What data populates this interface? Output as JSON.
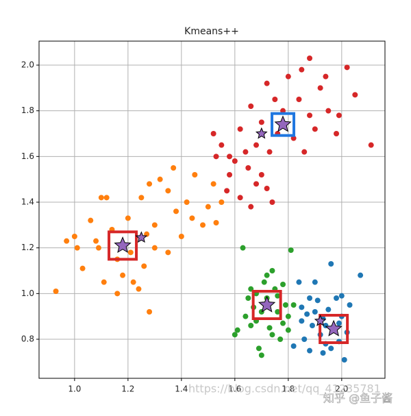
{
  "chart_data": {
    "type": "scatter",
    "title": "Kmeans++",
    "xlim": [
      0.867,
      2.162
    ],
    "ylim": [
      0.629,
      2.105
    ],
    "xticks": [
      {
        "value": 1,
        "label": "1.0"
      },
      1.2,
      1.4,
      1.6,
      1.8,
      {
        "value": 2,
        "label": "2.0"
      }
    ],
    "yticks": [
      0.8,
      {
        "value": 1,
        "label": "1.0"
      },
      1.2,
      1.4,
      1.6,
      1.8,
      {
        "value": 2,
        "label": "2.0"
      }
    ],
    "grid": true,
    "series": [
      {
        "color": "#d62728",
        "marker": "circle",
        "x": [
          1.62,
          1.65,
          1.58,
          1.55,
          1.52,
          1.6,
          1.68,
          1.7,
          1.72,
          1.66,
          1.74,
          1.64,
          1.58,
          1.66,
          1.72,
          1.75,
          1.8,
          1.85,
          1.88,
          1.92,
          1.95,
          1.98,
          2.02,
          2.05,
          2.11,
          1.88,
          1.82,
          1.9,
          1.84,
          1.78,
          1.7,
          1.68,
          1.62,
          1.73,
          1.94,
          1.86,
          1.76,
          1.99,
          1.53,
          1.57
        ],
        "values": [
          1.42,
          1.55,
          1.6,
          1.65,
          1.7,
          1.58,
          1.48,
          1.52,
          1.46,
          1.38,
          1.4,
          1.62,
          1.52,
          1.82,
          1.92,
          1.85,
          1.95,
          1.98,
          2.03,
          1.9,
          1.8,
          1.7,
          1.99,
          1.87,
          1.65,
          1.78,
          1.68,
          1.72,
          1.85,
          1.8,
          1.75,
          1.65,
          1.72,
          1.62,
          1.95,
          1.62,
          1.7,
          1.78,
          1.6,
          1.45
        ]
      },
      {
        "color": "#ff7f0e",
        "marker": "circle",
        "x": [
          0.93,
          0.97,
          1.0,
          1.01,
          1.03,
          1.06,
          1.08,
          1.1,
          1.12,
          1.11,
          1.14,
          1.16,
          1.18,
          1.2,
          1.22,
          1.24,
          1.26,
          1.28,
          1.25,
          1.3,
          1.32,
          1.35,
          1.38,
          1.4,
          1.42,
          1.45,
          1.48,
          1.5,
          1.52,
          1.53,
          1.55,
          1.35,
          1.3,
          1.28,
          1.09,
          1.16,
          1.37,
          1.44,
          1.21,
          1.27
        ],
        "values": [
          1.01,
          1.23,
          1.25,
          1.2,
          1.11,
          1.32,
          1.23,
          1.42,
          1.42,
          1.05,
          1.28,
          1.0,
          1.08,
          1.33,
          1.05,
          1.02,
          1.12,
          0.92,
          1.42,
          1.2,
          1.5,
          1.45,
          1.36,
          1.25,
          1.4,
          1.52,
          1.3,
          1.38,
          1.48,
          1.31,
          1.4,
          1.18,
          1.3,
          1.48,
          1.2,
          1.15,
          1.55,
          1.33,
          1.18,
          1.26
        ]
      },
      {
        "color": "#2ca02c",
        "marker": "circle",
        "x": [
          1.6,
          1.61,
          1.63,
          1.64,
          1.65,
          1.66,
          1.67,
          1.68,
          1.69,
          1.7,
          1.71,
          1.72,
          1.73,
          1.74,
          1.75,
          1.76,
          1.77,
          1.78,
          1.79,
          1.8,
          1.81,
          1.82,
          1.68,
          1.74,
          1.78,
          1.7,
          1.66,
          1.72,
          1.8,
          1.76
        ],
        "values": [
          0.82,
          0.84,
          1.2,
          0.9,
          0.98,
          1.02,
          0.94,
          0.88,
          0.76,
          0.73,
          1.05,
          0.98,
          0.85,
          1.1,
          1.02,
          0.92,
          0.8,
          0.87,
          0.95,
          0.9,
          1.19,
          0.95,
          1.0,
          0.82,
          1.04,
          0.92,
          0.86,
          1.08,
          0.84,
          0.99
        ]
      },
      {
        "color": "#1f77b4",
        "marker": "circle",
        "x": [
          1.82,
          1.84,
          1.85,
          1.86,
          1.87,
          1.88,
          1.89,
          1.9,
          1.91,
          1.92,
          1.93,
          1.94,
          1.95,
          1.96,
          1.97,
          1.98,
          1.99,
          2.0,
          2.01,
          2.02,
          2.03,
          2.07,
          1.88,
          1.94,
          1.99,
          1.85,
          1.96,
          1.9,
          2.0,
          1.93
        ],
        "values": [
          0.77,
          1.05,
          0.88,
          0.8,
          0.91,
          0.75,
          0.86,
          1.05,
          0.97,
          0.82,
          0.89,
          0.78,
          0.93,
          1.13,
          0.84,
          0.98,
          0.79,
          0.9,
          0.71,
          0.83,
          0.95,
          1.08,
          0.98,
          0.86,
          0.87,
          0.94,
          0.76,
          0.92,
          0.99,
          0.74
        ]
      },
      {
        "color": "#d62728",
        "marker": "square",
        "x": [
          1.18,
          1.72,
          1.97
        ],
        "values": [
          1.21,
          0.95,
          0.845
        ]
      },
      {
        "color": "#1f77e0",
        "marker": "square",
        "x": [
          1.78
        ],
        "values": [
          1.74
        ]
      },
      {
        "color": "#9467bd",
        "marker": "star",
        "size": "small",
        "x": [
          1.25,
          1.7,
          1.92
        ],
        "values": [
          1.245,
          1.7,
          0.88
        ]
      },
      {
        "color": "#9467bd",
        "marker": "star",
        "size": "large",
        "x": [
          1.18,
          1.78,
          1.72,
          1.97
        ],
        "values": [
          1.21,
          1.74,
          0.95,
          0.845
        ]
      }
    ],
    "watermark": "https://blog.csdn.net/qq_41235781",
    "watermark_2": "知乎 @鱼子酱"
  }
}
